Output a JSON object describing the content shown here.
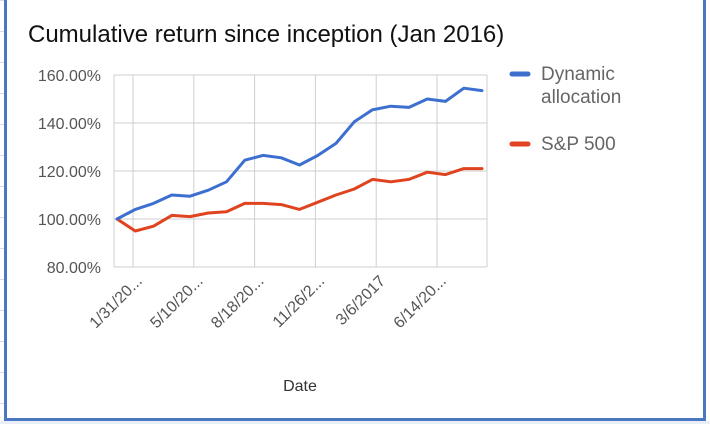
{
  "chart_data": {
    "type": "line",
    "title": "Cumulative return since inception (Jan 2016)",
    "xlabel": "Date",
    "ylabel": "",
    "ylim": [
      80,
      160
    ],
    "y_ticks": [
      "80.00%",
      "100.00%",
      "120.00%",
      "140.00%",
      "160.00%"
    ],
    "x_tick_labels": [
      "1/31/20...",
      "5/10/20...",
      "8/18/20...",
      "11/26/2...",
      "3/6/2017",
      "6/14/20..."
    ],
    "legend_position": "right",
    "grid": true,
    "series": [
      {
        "name": "Dynamic allocation",
        "color": "#3c6fcf",
        "values": [
          100,
          104,
          106.5,
          110,
          109.5,
          112,
          115.5,
          124.5,
          126.5,
          125.5,
          122.5,
          126.5,
          131.5,
          140.5,
          145.5,
          147,
          146.5,
          150,
          149,
          154.5,
          153.5
        ]
      },
      {
        "name": "S&P 500",
        "color": "#e0431f",
        "values": [
          100,
          95,
          97,
          101.5,
          101,
          102.5,
          103,
          106.5,
          106.5,
          106,
          104,
          107,
          110,
          112.5,
          116.5,
          115.5,
          116.5,
          119.5,
          118.5,
          121,
          121
        ]
      }
    ]
  }
}
